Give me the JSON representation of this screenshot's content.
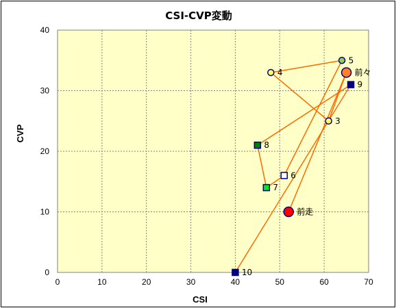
{
  "chart_data": {
    "type": "scatter",
    "title": "CSI-CVP変動",
    "xlabel": "CSI",
    "ylabel": "CVP",
    "xlim": [
      0,
      70
    ],
    "ylim": [
      0,
      40
    ],
    "x_ticks": [
      "0",
      "10",
      "20",
      "30",
      "40",
      "50",
      "60",
      "70"
    ],
    "y_ticks": [
      "0",
      "10",
      "20",
      "30",
      "40"
    ],
    "grid": true,
    "colors": {
      "plot_background": "#ffffc8",
      "grid": "#808080",
      "line": "#ff6a00",
      "point_border": "#000080"
    },
    "line_order": [
      "前走",
      "前々",
      "3",
      "4",
      "5",
      "6",
      "7",
      "8",
      "9",
      "10"
    ],
    "points": [
      {
        "label": "前走",
        "x": 52,
        "y": 10,
        "shape": "circle",
        "fill": "#ff0000",
        "large": true
      },
      {
        "label": "前々",
        "x": 65,
        "y": 33,
        "shape": "circle",
        "fill": "#ff7f27",
        "large": true
      },
      {
        "label": "3",
        "x": 61,
        "y": 25,
        "shape": "circle",
        "fill": "#ffff66",
        "large": false
      },
      {
        "label": "4",
        "x": 48,
        "y": 33,
        "shape": "circle",
        "fill": "#ffff66",
        "large": false
      },
      {
        "label": "5",
        "x": 64,
        "y": 35,
        "shape": "circle",
        "fill": "#92d050",
        "large": false
      },
      {
        "label": "6",
        "x": 51,
        "y": 16,
        "shape": "square",
        "fill": "#ffffff",
        "large": false
      },
      {
        "label": "7",
        "x": 47,
        "y": 14,
        "shape": "square",
        "fill": "#00ee00",
        "large": false
      },
      {
        "label": "8",
        "x": 45,
        "y": 21,
        "shape": "square",
        "fill": "#008000",
        "large": false
      },
      {
        "label": "9",
        "x": 66,
        "y": 31,
        "shape": "square",
        "fill": "#000080",
        "large": false
      },
      {
        "label": "10",
        "x": 40,
        "y": 0,
        "shape": "square",
        "fill": "#000080",
        "large": false
      }
    ]
  }
}
